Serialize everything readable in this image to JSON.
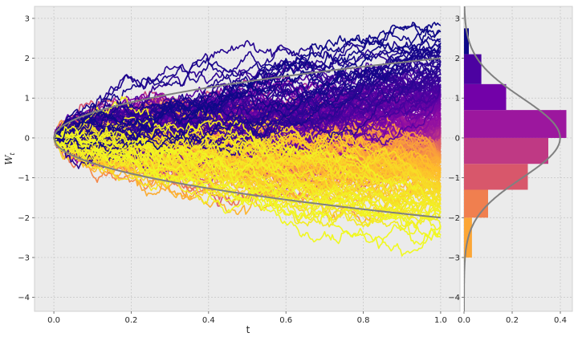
{
  "chart_data": [
    {
      "type": "line",
      "xlabel": "t",
      "ylabel_main": "W",
      "ylabel_sub": "t",
      "xlim": [
        -0.05,
        1.05
      ],
      "ylim": [
        -4.35,
        3.3
      ],
      "x_ticks": [
        "0.0",
        "0.2",
        "0.4",
        "0.6",
        "0.8",
        "1.0"
      ],
      "y_ticks": [
        "−4",
        "−3",
        "−2",
        "−1",
        "0",
        "1",
        "2",
        "3"
      ],
      "grid": true,
      "colormap": "plasma",
      "n_paths": 300,
      "n_steps": 500,
      "envelope": {
        "formula": "±2·sqrt(t)",
        "color": "#808080"
      },
      "background": "#ebebeb"
    },
    {
      "type": "bar",
      "orientation": "horizontal",
      "bins": [
        {
          "lo": -4.0,
          "hi": -3.0,
          "density": 0.002,
          "color": "#f5e626"
        },
        {
          "lo": -3.0,
          "hi": -2.0,
          "density": 0.033,
          "color": "#fca636"
        },
        {
          "lo": -2.0,
          "hi": -1.3,
          "density": 0.1,
          "color": "#f07f4f"
        },
        {
          "lo": -1.3,
          "hi": -0.65,
          "density": 0.265,
          "color": "#d8576b"
        },
        {
          "lo": -0.65,
          "hi": 0.0,
          "density": 0.35,
          "color": "#bf3984"
        },
        {
          "lo": 0.0,
          "hi": 0.7,
          "density": 0.425,
          "color": "#9c179e"
        },
        {
          "lo": 0.7,
          "hi": 1.35,
          "density": 0.175,
          "color": "#7201a8"
        },
        {
          "lo": 1.35,
          "hi": 2.1,
          "density": 0.072,
          "color": "#4c02a1"
        },
        {
          "lo": 2.1,
          "hi": 2.75,
          "density": 0.02,
          "color": "#0d0887"
        }
      ],
      "normal_pdf": {
        "mean": 0,
        "sd": 1,
        "color": "#808080"
      },
      "xlim": [
        0,
        0.45
      ],
      "ylim": [
        -4.35,
        3.3
      ],
      "x_ticks": [
        "0.0",
        "0.2",
        "0.4"
      ],
      "y_ticks": [
        "−4",
        "−3",
        "−2",
        "−1",
        "0",
        "1",
        "2",
        "3"
      ]
    }
  ]
}
